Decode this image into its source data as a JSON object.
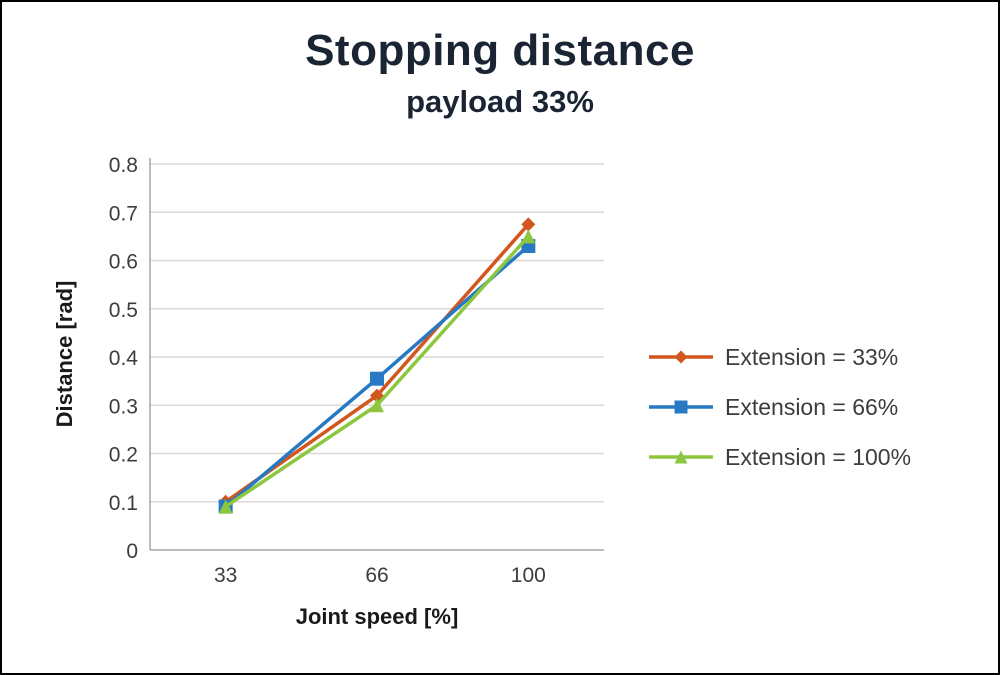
{
  "chart_data": {
    "type": "line",
    "title": "Stopping distance",
    "subtitle": "payload 33%",
    "xlabel": "Joint speed [%]",
    "ylabel": "Distance [rad]",
    "categories": [
      "33",
      "66",
      "100"
    ],
    "series": [
      {
        "name": "Extension = 33%",
        "marker": "diamond",
        "color": "#d2571e",
        "values": [
          0.1,
          0.32,
          0.675
        ]
      },
      {
        "name": "Extension = 66%",
        "marker": "square",
        "color": "#2779c4",
        "values": [
          0.09,
          0.355,
          0.63
        ]
      },
      {
        "name": "Extension = 100%",
        "marker": "triangle",
        "color": "#8dc63f",
        "values": [
          0.09,
          0.3,
          0.65
        ]
      }
    ],
    "ylim": [
      0,
      0.8
    ],
    "ytick_step": 0.1,
    "grid": true,
    "legend_position": "right"
  },
  "colors": {
    "grid": "#d9d9d9",
    "axis": "#a6a6a6",
    "tick_text": "#3d3d3d",
    "title_text": "#1a2433"
  }
}
